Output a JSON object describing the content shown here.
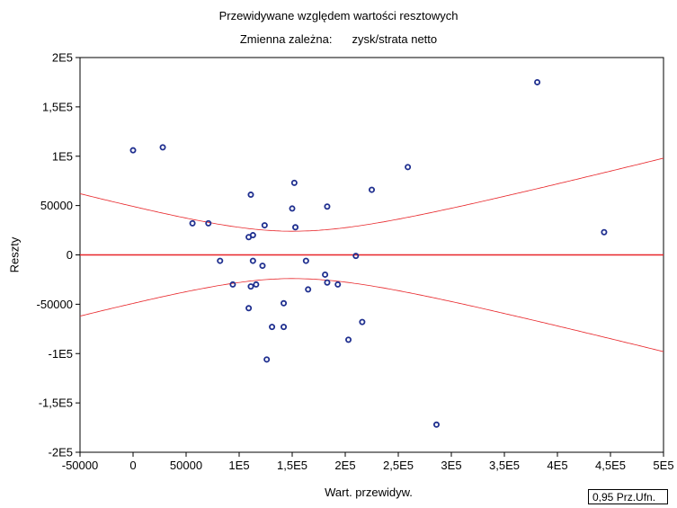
{
  "chart_data": {
    "type": "scatter",
    "title": "Przewidywane względem wartości resztowych",
    "subtitle_label": "Zmienna zależna:",
    "subtitle_value": "zysk/strata netto",
    "xlabel": "Wart. przewidyw.",
    "ylabel": "Reszty",
    "xlim": [
      -50000,
      500000
    ],
    "ylim": [
      -200000,
      200000
    ],
    "x_ticks": [
      -50000,
      0,
      50000,
      100000,
      150000,
      200000,
      250000,
      300000,
      350000,
      400000,
      450000,
      500000
    ],
    "x_tick_labels": [
      "-50000",
      "0",
      "50000",
      "1E5",
      "1,5E5",
      "2E5",
      "2,5E5",
      "3E5",
      "3,5E5",
      "4E5",
      "4,5E5",
      "5E5"
    ],
    "y_ticks": [
      200000,
      150000,
      100000,
      50000,
      0,
      -50000,
      -100000,
      -150000,
      -200000
    ],
    "y_tick_labels": [
      "2E5",
      "1,5E5",
      "1E5",
      "50000",
      "0",
      "-50000",
      "-1E5",
      "-1,5E5",
      "-2E5"
    ],
    "grid": false,
    "colors": {
      "points": "#1f2f8f",
      "regression": "#e8262a",
      "band": "#e8262a"
    },
    "confidence_label": "0,95 Prz.Ufn.",
    "regression_line": {
      "slope": 0,
      "intercept": 0
    },
    "confidence_band": {
      "center_x": 150000,
      "min_halfwidth": 24000,
      "halfwidth_at_xmin": 62000,
      "halfwidth_at_xmax": 98000
    },
    "points": [
      [
        0,
        106000
      ],
      [
        28000,
        109000
      ],
      [
        56000,
        32000
      ],
      [
        71000,
        32000
      ],
      [
        82000,
        -6000
      ],
      [
        94000,
        -30000
      ],
      [
        109000,
        -54000
      ],
      [
        109000,
        18000
      ],
      [
        111000,
        61000
      ],
      [
        111000,
        -32000
      ],
      [
        113000,
        20000
      ],
      [
        113000,
        -6000
      ],
      [
        116000,
        -30000
      ],
      [
        122000,
        -11000
      ],
      [
        124000,
        30000
      ],
      [
        126000,
        -106000
      ],
      [
        131000,
        -73000
      ],
      [
        142000,
        -73000
      ],
      [
        142000,
        -49000
      ],
      [
        150000,
        47000
      ],
      [
        152000,
        73000
      ],
      [
        153000,
        28000
      ],
      [
        163000,
        -6000
      ],
      [
        165000,
        -35000
      ],
      [
        181000,
        -20000
      ],
      [
        183000,
        49000
      ],
      [
        183000,
        -28000
      ],
      [
        193000,
        -30000
      ],
      [
        203000,
        -86000
      ],
      [
        210000,
        -1000
      ],
      [
        216000,
        -68000
      ],
      [
        225000,
        66000
      ],
      [
        259000,
        89000
      ],
      [
        286000,
        -172000
      ],
      [
        381000,
        175000
      ],
      [
        444000,
        23000
      ]
    ]
  }
}
